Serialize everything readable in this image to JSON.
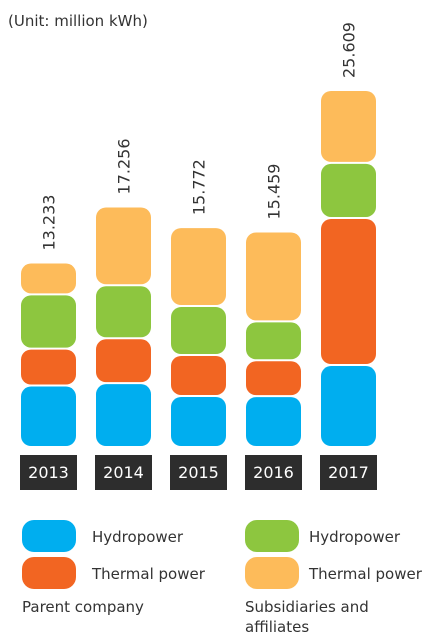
{
  "chart_data": {
    "type": "stacked_bar",
    "subtitle": "(Unit: million kWh)",
    "categories": [
      "2013",
      "2014",
      "2015",
      "2016",
      "2017"
    ],
    "totals": [
      "13.233",
      "17.256",
      "15.772",
      "15.459",
      "25.609"
    ],
    "series": [
      {
        "name": "Hydropower",
        "color": "#00aeef",
        "values": [
          4.41,
          4.58,
          3.66,
          3.65,
          5.88
        ]
      },
      {
        "name": "Thermal power",
        "color": "#f26522",
        "values": [
          2.65,
          3.22,
          2.94,
          2.57,
          10.55
        ]
      },
      {
        "name": "Hydropower",
        "color": "#8dc63f",
        "values": [
          3.89,
          3.8,
          3.51,
          2.79,
          3.95
        ]
      },
      {
        "name": "Thermal power",
        "color": "#fdbb5a",
        "values": [
          2.283,
          5.656,
          5.662,
          6.449,
          5.229
        ]
      }
    ],
    "legend_groups": [
      "Parent company",
      "Subsidiaries and affiliates"
    ]
  }
}
